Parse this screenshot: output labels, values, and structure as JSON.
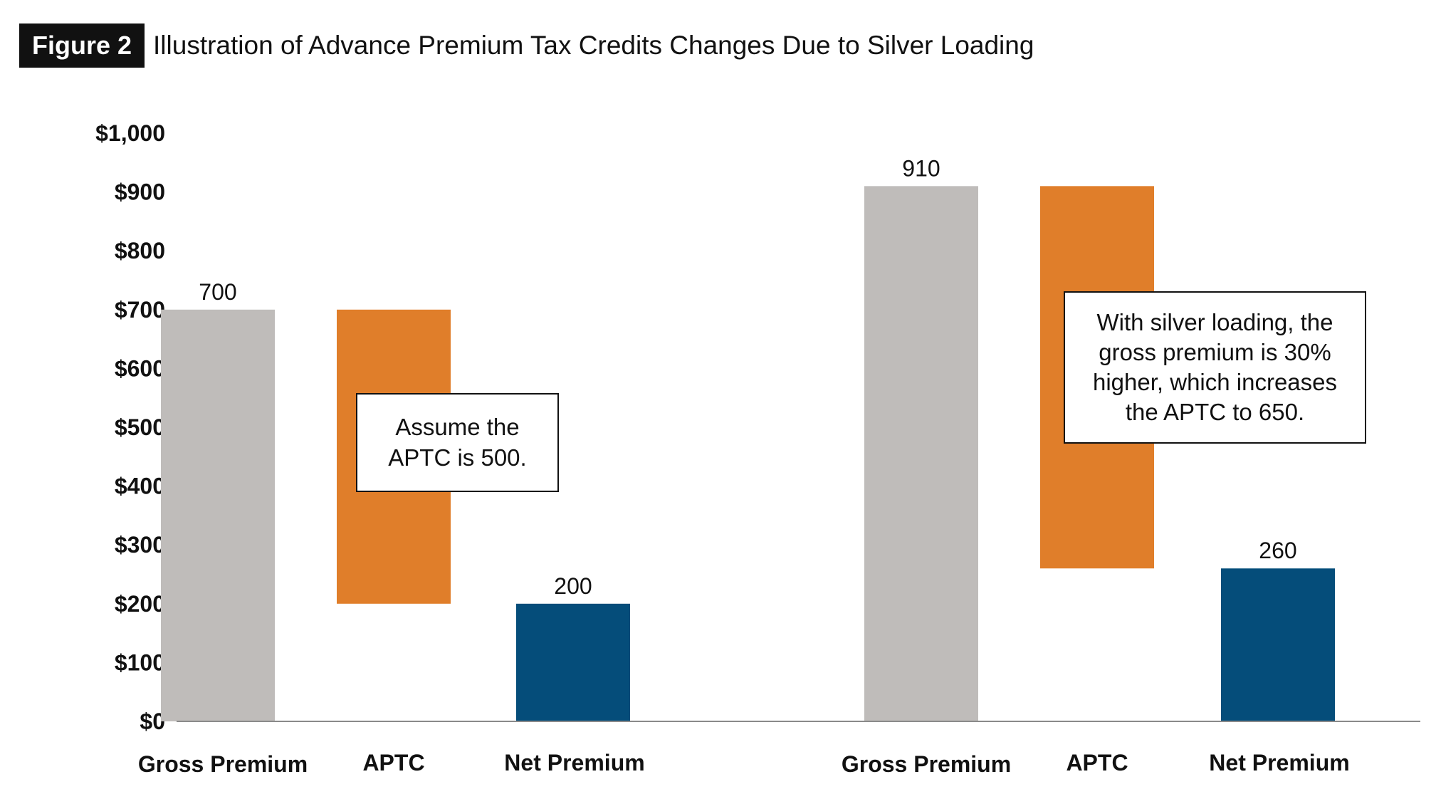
{
  "figure": {
    "badge": "Figure 2",
    "title": "Illustration of Advance Premium Tax Credits Changes Due to Silver Loading"
  },
  "colors": {
    "gross": "#bfbcba",
    "aptc": "#e07e2a",
    "net": "#054d7a",
    "axis": "#8a8a8a"
  },
  "callouts": {
    "left": "Assume the APTC is 500.",
    "right": "With silver loading, the gross premium is 30% higher, which increases the APTC to 650."
  },
  "chart_data": {
    "type": "bar",
    "subtype": "waterfall",
    "ylim": [
      0,
      1000
    ],
    "yticks": [
      0,
      100,
      200,
      300,
      400,
      500,
      600,
      700,
      800,
      900,
      1000
    ],
    "ytick_labels": [
      "$0",
      "$100",
      "$200",
      "$300",
      "$400",
      "$500",
      "$600",
      "$700",
      "$800",
      "$900",
      "$1,000"
    ],
    "grid": false,
    "legend": "none",
    "groups": [
      {
        "bars": [
          {
            "category": "Gross Premium",
            "bottom": 0,
            "top": 700,
            "color_key": "gross",
            "label": "700"
          },
          {
            "category": "APTC",
            "bottom": 200,
            "top": 700,
            "color_key": "aptc",
            "label": ""
          },
          {
            "category": "Net Premium",
            "bottom": 0,
            "top": 200,
            "color_key": "net",
            "label": "200"
          }
        ]
      },
      {
        "bars": [
          {
            "category": "Gross Premium",
            "bottom": 0,
            "top": 910,
            "color_key": "gross",
            "label": "910"
          },
          {
            "category": "APTC",
            "bottom": 260,
            "top": 910,
            "color_key": "aptc",
            "label": ""
          },
          {
            "category": "Net Premium",
            "bottom": 0,
            "top": 260,
            "color_key": "net",
            "label": "260"
          }
        ]
      }
    ]
  }
}
